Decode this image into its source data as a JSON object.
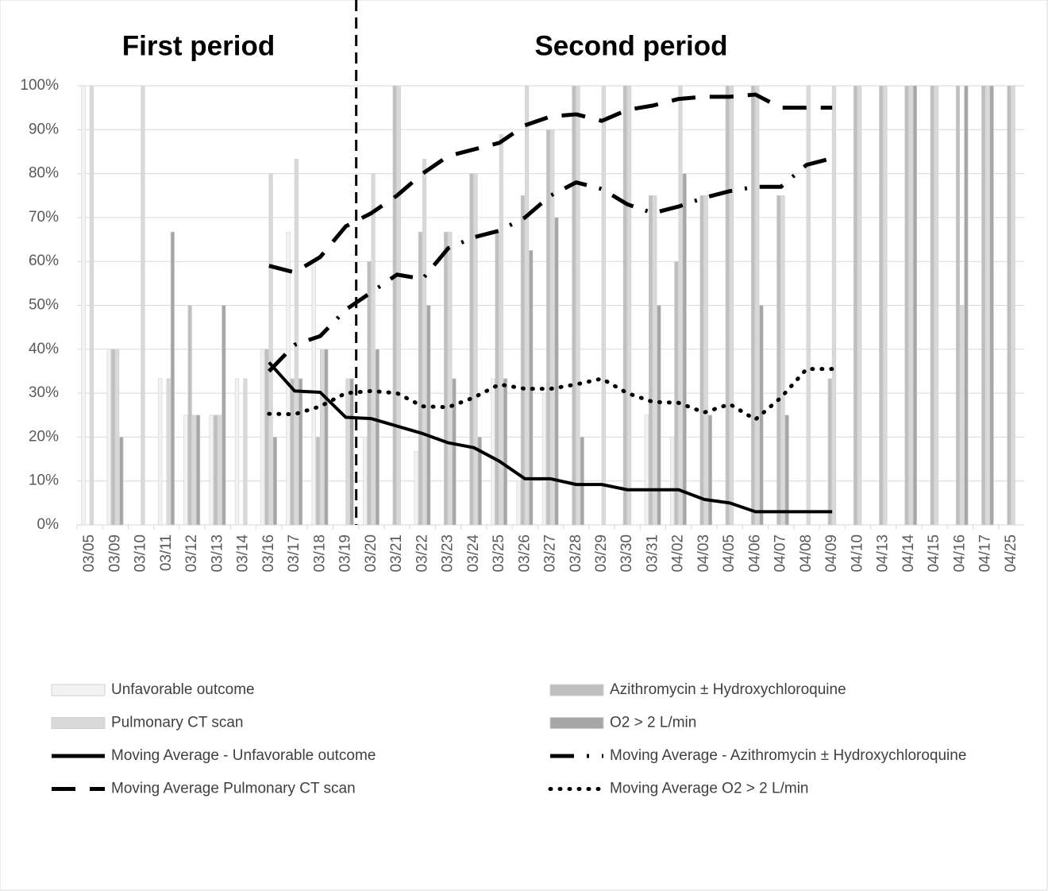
{
  "chart_data": {
    "type": "bar-line",
    "annotations": [
      "First period",
      "Second period"
    ],
    "categories": [
      "03/05",
      "03/09",
      "03/10",
      "03/11",
      "03/12",
      "03/13",
      "03/14",
      "03/16",
      "03/17",
      "03/18",
      "03/19",
      "03/20",
      "03/21",
      "03/22",
      "03/23",
      "03/24",
      "03/25",
      "03/26",
      "03/27",
      "03/28",
      "03/29",
      "03/30",
      "03/31",
      "04/02",
      "04/03",
      "04/05",
      "04/06",
      "04/07",
      "04/08",
      "04/09",
      "04/10",
      "04/13",
      "04/14",
      "04/15",
      "04/16",
      "04/17",
      "04/25"
    ],
    "ylim": [
      0,
      100
    ],
    "yticks": [
      {
        "value": 0,
        "label": "0%"
      },
      {
        "value": 10,
        "label": "10%"
      },
      {
        "value": 20,
        "label": "20%"
      },
      {
        "value": 30,
        "label": "30%"
      },
      {
        "value": 40,
        "label": "40%"
      },
      {
        "value": 50,
        "label": "50%"
      },
      {
        "value": 60,
        "label": "60%"
      },
      {
        "value": 70,
        "label": "70%"
      },
      {
        "value": 80,
        "label": "80%"
      },
      {
        "value": 90,
        "label": "90%"
      },
      {
        "value": 100,
        "label": "100%"
      }
    ],
    "grid": true,
    "series": [
      {
        "name": "Unfavorable outcome",
        "kind": "bar",
        "color": "#f2f2f2",
        "values": [
          100,
          40,
          0,
          33.3,
          25,
          25,
          33.3,
          40,
          66.7,
          60,
          0,
          20,
          0,
          16.7,
          0,
          0,
          33.3,
          10,
          30,
          0,
          0,
          0,
          25,
          20,
          0,
          0,
          0,
          0,
          0,
          0,
          0,
          0,
          0,
          0,
          0,
          0,
          0
        ]
      },
      {
        "name": "Azithromycin ± Hydroxychloroquine",
        "kind": "bar",
        "color": "#bfbfbf",
        "values": [
          0,
          40,
          0,
          0,
          50,
          25,
          0,
          40,
          33.3,
          20,
          0,
          60,
          100,
          66.7,
          66.7,
          80,
          66.7,
          75,
          90,
          100,
          0,
          100,
          75,
          60,
          75,
          100,
          100,
          75,
          0,
          33.3,
          100,
          100,
          100,
          100,
          100,
          100,
          100
        ]
      },
      {
        "name": "Pulmonary CT scan",
        "kind": "bar",
        "color": "#d9d9d9",
        "values": [
          100,
          40,
          100,
          33.3,
          25,
          25,
          33.3,
          80,
          83.3,
          40,
          33.3,
          80,
          100,
          83.3,
          66.7,
          80,
          88.9,
          100,
          90,
          100,
          100,
          100,
          75,
          100,
          75,
          100,
          100,
          75,
          100,
          100,
          100,
          100,
          100,
          100,
          50,
          100,
          100
        ]
      },
      {
        "name": "O2 > 2 L/min",
        "kind": "bar",
        "color": "#a6a6a6",
        "values": [
          0,
          20,
          0,
          66.7,
          25,
          50,
          0,
          20,
          33.3,
          40,
          33.3,
          40,
          0,
          50,
          33.3,
          20,
          33.3,
          62.5,
          70,
          20,
          0,
          0,
          50,
          80,
          25,
          0,
          50,
          25,
          0,
          0,
          0,
          0,
          100,
          0,
          100,
          100,
          0
        ]
      },
      {
        "name": "Moving Average - Unfavorable outcome",
        "kind": "line",
        "dash": "solid",
        "color": "#000000",
        "values": [
          null,
          null,
          null,
          null,
          null,
          null,
          null,
          37,
          30.5,
          30.2,
          24.5,
          24.2,
          22.5,
          20.8,
          18.7,
          17.6,
          14.5,
          10.5,
          10.5,
          9.2,
          9.2,
          8,
          8,
          8,
          5.8,
          5,
          3,
          3,
          3,
          3,
          null,
          null,
          null,
          null,
          null,
          null,
          null
        ]
      },
      {
        "name": "Moving Average - Azithromycin ± Hydroxychloroquine",
        "kind": "line",
        "dash": "dashdot",
        "color": "#000000",
        "values": [
          null,
          null,
          null,
          null,
          null,
          null,
          null,
          35,
          41,
          43,
          49,
          53,
          57,
          56,
          63,
          65.5,
          67,
          70,
          75,
          78,
          76.5,
          73,
          71,
          72.5,
          74.5,
          76,
          77,
          77,
          82,
          83.5,
          null,
          null,
          null,
          null,
          null,
          null,
          null
        ]
      },
      {
        "name": "Moving Average Pulmonary CT scan",
        "kind": "line",
        "dash": "dash",
        "color": "#000000",
        "values": [
          null,
          null,
          null,
          null,
          null,
          null,
          null,
          59,
          57.5,
          61,
          68,
          71,
          75,
          80,
          84,
          85.5,
          87,
          91,
          93,
          93.5,
          92,
          94.5,
          95.5,
          97,
          97.5,
          97.5,
          98,
          95,
          95,
          95,
          null,
          null,
          null,
          null,
          null,
          null,
          null
        ]
      },
      {
        "name": "Moving Average O2 > 2 L/min",
        "kind": "line",
        "dash": "dot",
        "color": "#000000",
        "values": [
          null,
          null,
          null,
          null,
          null,
          null,
          null,
          25.3,
          25.2,
          27,
          30,
          30.5,
          30,
          27,
          26.8,
          29,
          32,
          31,
          31,
          32,
          33.3,
          30,
          28,
          27.8,
          25.6,
          27.5,
          24,
          29,
          35.5,
          35.5,
          null,
          null,
          null,
          null,
          null,
          null,
          null
        ]
      }
    ]
  }
}
